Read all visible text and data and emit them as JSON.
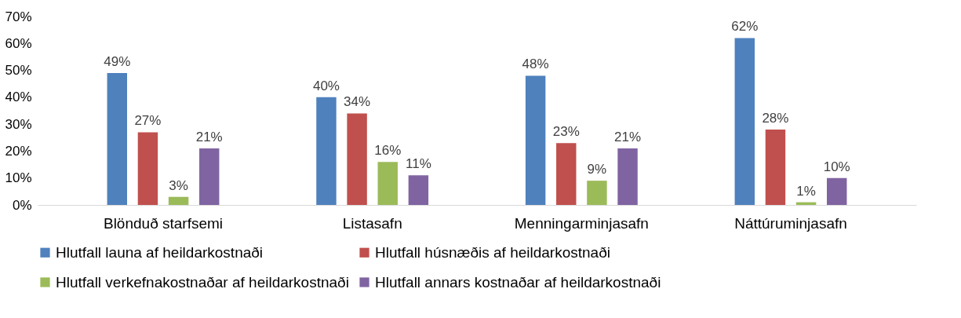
{
  "chart_data": {
    "type": "bar",
    "categories": [
      "Blönduð starfsemi",
      "Listasafn",
      "Menningarminjasafn",
      "Náttúruminjasafn"
    ],
    "series": [
      {
        "name": "Hlutfall launa af heildarkostnaði",
        "color": "#4f81bd",
        "values": [
          49,
          40,
          48,
          62
        ],
        "value_labels": [
          "49%",
          "40%",
          "48%",
          "62%"
        ]
      },
      {
        "name": "Hlutfall húsnæðis af heildarkostnaði",
        "color": "#c0504d",
        "values": [
          27,
          34,
          23,
          28
        ],
        "value_labels": [
          "27%",
          "34%",
          "23%",
          "28%"
        ]
      },
      {
        "name": "Hlutfall verkefnakostnaðar af heildarkostnaði",
        "color": "#9bbb59",
        "values": [
          3,
          16,
          9,
          1
        ],
        "value_labels": [
          "3%",
          "16%",
          "9%",
          "1%"
        ]
      },
      {
        "name": "Hlutfall annars kostnaðar af heildarkostnaði",
        "color": "#8064a2",
        "values": [
          21,
          11,
          21,
          10
        ],
        "value_labels": [
          "21%",
          "11%",
          "21%",
          "10%"
        ]
      }
    ],
    "ylim": [
      0,
      70
    ],
    "yticks": [
      {
        "value": 0,
        "label": "0%"
      },
      {
        "value": 10,
        "label": "10%"
      },
      {
        "value": 20,
        "label": "20%"
      },
      {
        "value": 30,
        "label": "30%"
      },
      {
        "value": 40,
        "label": "40%"
      },
      {
        "value": 50,
        "label": "50%"
      },
      {
        "value": 60,
        "label": "60%"
      },
      {
        "value": 70,
        "label": "70%"
      }
    ],
    "grid": false,
    "legend": "bottom"
  }
}
